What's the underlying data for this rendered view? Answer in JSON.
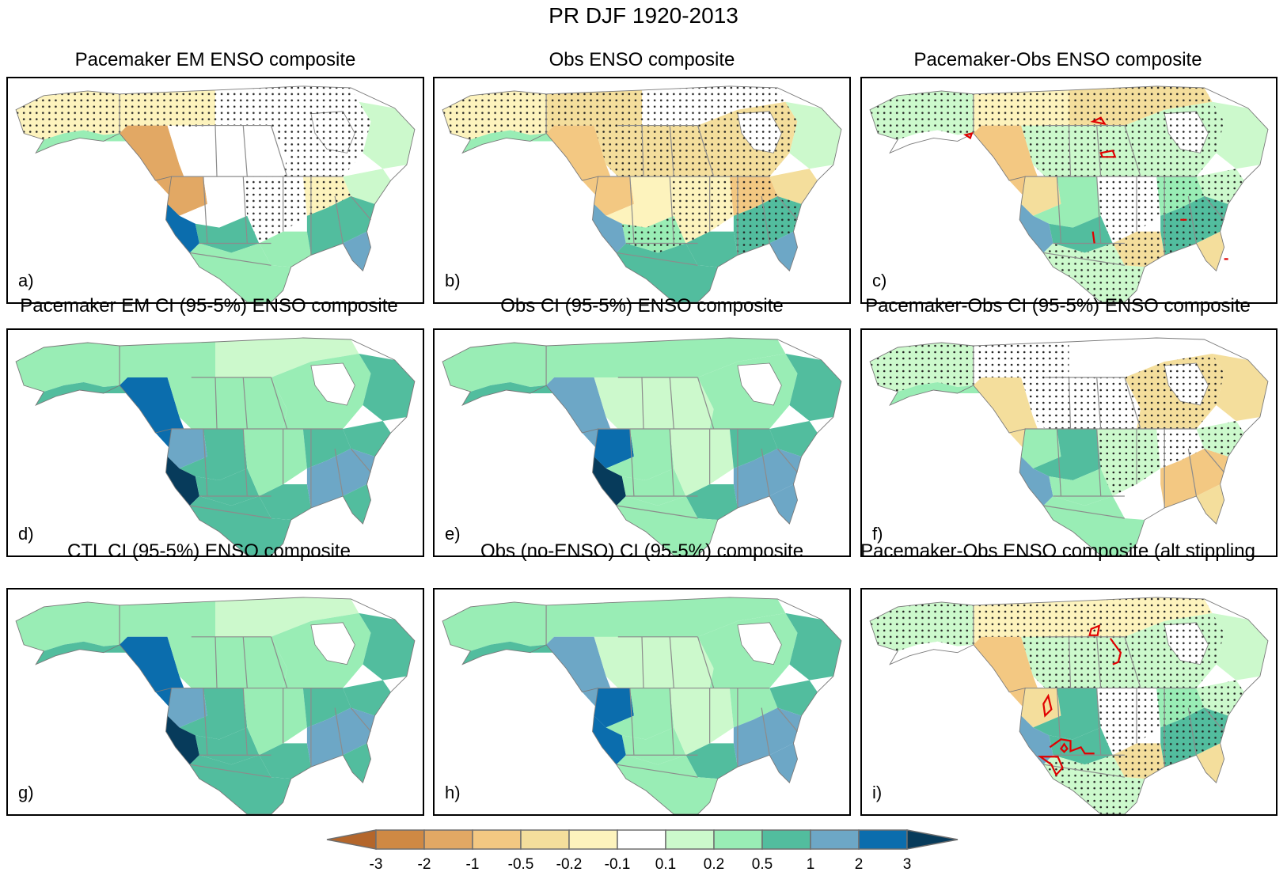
{
  "figure": {
    "title": "PR DJF 1920-2013"
  },
  "chart_data": {
    "type": "heatmap",
    "title": "PR DJF 1920-2013",
    "description": "3x3 grid of North America precipitation composite maps with shared colorbar; stippling marks significance, red contours mark regions on difference panels",
    "colorbar": {
      "ticks": [
        "-3",
        "-2",
        "-1",
        "-0.5",
        "-0.2",
        "-0.1",
        "0.1",
        "0.2",
        "0.5",
        "1",
        "2",
        "3"
      ],
      "levels": [
        -3,
        -2,
        -1,
        -0.5,
        -0.2,
        -0.1,
        0.1,
        0.2,
        0.5,
        1,
        2,
        3
      ],
      "colors": [
        "#b4662b",
        "#cf8944",
        "#e2a864",
        "#f3c882",
        "#f4de9c",
        "#fdf3bd",
        "#ffffff",
        "#ccf9cc",
        "#99edb5",
        "#52bd9e",
        "#6da7c6",
        "#0b6dad",
        "#073b5b"
      ],
      "extend": "both",
      "placement": "bottom"
    },
    "panels": [
      {
        "id": "a",
        "label": "a)",
        "title": "Pacemaker EM ENSO composite",
        "stippled": true,
        "red_contours": false,
        "regions": {
          "alaska": 5,
          "alaska_coast": 8,
          "nw_canada": 5,
          "bc_coast": 2,
          "prairies": 6,
          "north_canada": 6,
          "quebec": 6,
          "labrador": 7,
          "pnw": 2,
          "great_basin": 6,
          "california": 11,
          "sw_desert": 9,
          "central_plains": 6,
          "texas": 8,
          "southeast": 9,
          "florida": 10,
          "great_lakes": 5,
          "northeast": 7,
          "mexico": 8
        }
      },
      {
        "id": "b",
        "label": "b)",
        "title": "Obs ENSO composite",
        "stippled": true,
        "red_contours": false,
        "regions": {
          "alaska": 5,
          "alaska_coast": 8,
          "nw_canada": 4,
          "bc_coast": 3,
          "prairies": 4,
          "north_canada": 6,
          "quebec": 4,
          "labrador": 7,
          "pnw": 3,
          "great_basin": 5,
          "california": 10,
          "sw_desert": 8,
          "central_plains": 5,
          "texas": 9,
          "southeast": 9,
          "florida": 10,
          "great_lakes": 3,
          "northeast": 4,
          "mexico": 9
        }
      },
      {
        "id": "c",
        "label": "c)",
        "title": "Pacemaker-Obs ENSO composite",
        "stippled": true,
        "red_contours": true,
        "regions": {
          "alaska": 7,
          "alaska_coast": 6,
          "nw_canada": 5,
          "bc_coast": 3,
          "prairies": 7,
          "north_canada": 4,
          "quebec": 7,
          "labrador": 7,
          "pnw": 4,
          "great_basin": 8,
          "california": 10,
          "sw_desert": 9,
          "central_plains": 6,
          "texas": 4,
          "southeast": 9,
          "florida": 4,
          "great_lakes": 8,
          "northeast": 7,
          "mexico": 7
        }
      },
      {
        "id": "d",
        "label": "d)",
        "title": "Pacemaker EM CI (95-5%) ENSO composite",
        "stippled": false,
        "red_contours": false,
        "regions": {
          "alaska": 8,
          "alaska_coast": 9,
          "nw_canada": 8,
          "bc_coast": 11,
          "prairies": 8,
          "north_canada": 7,
          "quebec": 8,
          "labrador": 9,
          "pnw": 10,
          "great_basin": 9,
          "california": 12,
          "sw_desert": 9,
          "central_plains": 8,
          "texas": 9,
          "southeast": 10,
          "florida": 9,
          "great_lakes": 9,
          "northeast": 9,
          "mexico": 9
        }
      },
      {
        "id": "e",
        "label": "e)",
        "title": "Obs CI (95-5%) ENSO composite",
        "stippled": false,
        "red_contours": false,
        "regions": {
          "alaska": 8,
          "alaska_coast": 9,
          "nw_canada": 8,
          "bc_coast": 10,
          "prairies": 7,
          "north_canada": 8,
          "quebec": 8,
          "labrador": 9,
          "pnw": 11,
          "great_basin": 8,
          "california": 12,
          "sw_desert": 8,
          "central_plains": 7,
          "texas": 9,
          "southeast": 10,
          "florida": 10,
          "great_lakes": 9,
          "northeast": 9,
          "mexico": 8
        }
      },
      {
        "id": "f",
        "label": "f)",
        "title": "Pacemaker-Obs CI (95-5%) ENSO composite",
        "stippled": true,
        "red_contours": false,
        "regions": {
          "alaska": 7,
          "alaska_coast": 8,
          "nw_canada": 6,
          "bc_coast": 4,
          "prairies": 6,
          "north_canada": 6,
          "quebec": 4,
          "labrador": 4,
          "pnw": 8,
          "great_basin": 9,
          "california": 10,
          "sw_desert": 8,
          "central_plains": 7,
          "texas": 6,
          "southeast": 3,
          "florida": 4,
          "great_lakes": 6,
          "northeast": 7,
          "mexico": 8
        }
      },
      {
        "id": "g",
        "label": "g)",
        "title": "CTL CI (95-5%) ENSO composite",
        "stippled": false,
        "red_contours": false,
        "regions": {
          "alaska": 8,
          "alaska_coast": 9,
          "nw_canada": 8,
          "bc_coast": 11,
          "prairies": 8,
          "north_canada": 7,
          "quebec": 8,
          "labrador": 9,
          "pnw": 10,
          "great_basin": 9,
          "california": 12,
          "sw_desert": 9,
          "central_plains": 8,
          "texas": 9,
          "southeast": 10,
          "florida": 9,
          "great_lakes": 9,
          "northeast": 9,
          "mexico": 9
        }
      },
      {
        "id": "h",
        "label": "h)",
        "title": "Obs (no-ENSO) CI (95-5%) composite",
        "stippled": false,
        "red_contours": false,
        "regions": {
          "alaska": 8,
          "alaska_coast": 9,
          "nw_canada": 8,
          "bc_coast": 10,
          "prairies": 7,
          "north_canada": 8,
          "quebec": 8,
          "labrador": 9,
          "pnw": 11,
          "great_basin": 8,
          "california": 11,
          "sw_desert": 8,
          "central_plains": 7,
          "texas": 9,
          "southeast": 10,
          "florida": 10,
          "great_lakes": 8,
          "northeast": 9,
          "mexico": 8
        }
      },
      {
        "id": "i",
        "label": "i)",
        "title": "Pacemaker-Obs ENSO composite (alt stippling",
        "stippled": true,
        "red_contours": true,
        "regions": {
          "alaska": 7,
          "alaska_coast": 6,
          "nw_canada": 5,
          "bc_coast": 3,
          "prairies": 7,
          "north_canada": 5,
          "quebec": 7,
          "labrador": 7,
          "pnw": 4,
          "great_basin": 9,
          "california": 10,
          "sw_desert": 9,
          "central_plains": 6,
          "texas": 4,
          "southeast": 9,
          "florida": 4,
          "great_lakes": 8,
          "northeast": 7,
          "mexico": 7
        }
      }
    ],
    "styles": {
      "coast_color": "#7a7a7a",
      "border_color": "#8c8c8c",
      "stipple_color": "#222222",
      "contour_color": "#e00000"
    }
  }
}
